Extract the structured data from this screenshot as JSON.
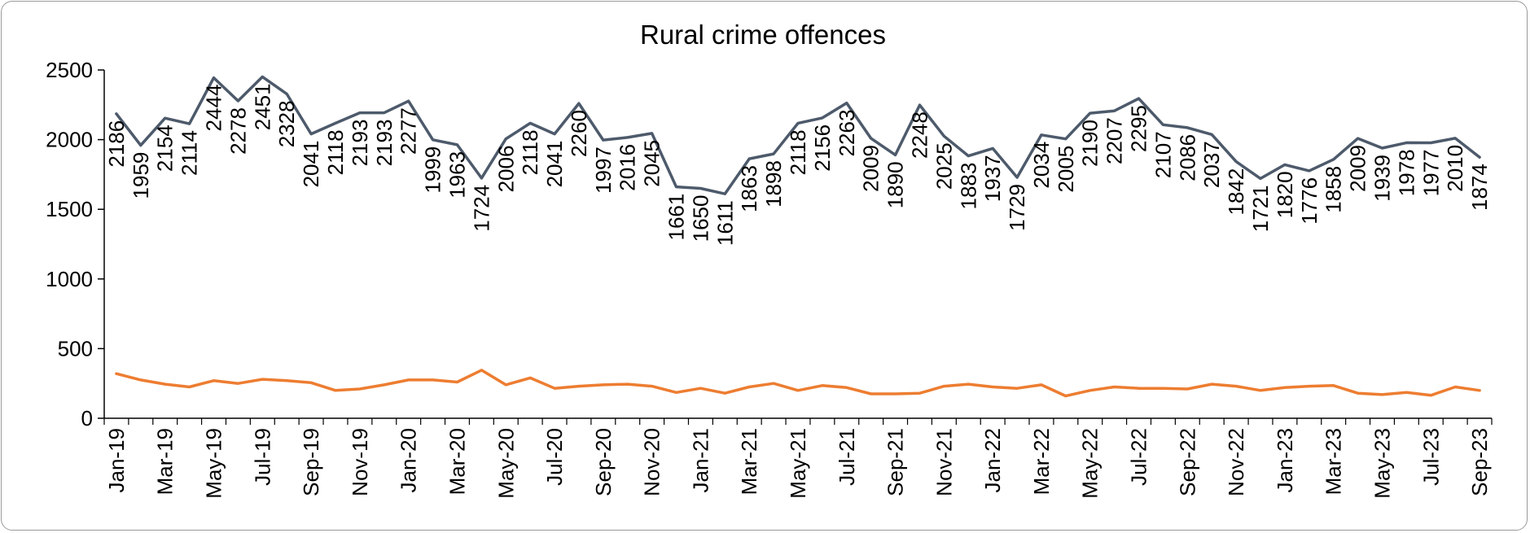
{
  "chart_data": {
    "type": "line",
    "title": "Rural crime offences",
    "xlabel": "",
    "ylabel": "",
    "ylim": [
      0,
      2500
    ],
    "yticks": [
      0,
      500,
      1000,
      1500,
      2000,
      2500
    ],
    "grid": false,
    "legend": "none",
    "x": [
      "Jan-19",
      "Feb-19",
      "Mar-19",
      "Apr-19",
      "May-19",
      "Jun-19",
      "Jul-19",
      "Aug-19",
      "Sep-19",
      "Oct-19",
      "Nov-19",
      "Dec-19",
      "Jan-20",
      "Feb-20",
      "Mar-20",
      "Apr-20",
      "May-20",
      "Jun-20",
      "Jul-20",
      "Aug-20",
      "Sep-20",
      "Oct-20",
      "Nov-20",
      "Dec-20",
      "Jan-21",
      "Feb-21",
      "Mar-21",
      "Apr-21",
      "May-21",
      "Jun-21",
      "Jul-21",
      "Aug-21",
      "Sep-21",
      "Oct-21",
      "Nov-21",
      "Dec-21",
      "Jan-22",
      "Feb-22",
      "Mar-22",
      "Apr-22",
      "May-22",
      "Jun-22",
      "Jul-22",
      "Aug-22",
      "Sep-22",
      "Oct-22",
      "Nov-22",
      "Dec-22",
      "Jan-23",
      "Feb-23",
      "Mar-23",
      "Apr-23",
      "May-23",
      "Jun-23",
      "Jul-23",
      "Aug-23",
      "Sep-23"
    ],
    "x_tick_labels": [
      "Jan-19",
      "Mar-19",
      "May-19",
      "Jul-19",
      "Sep-19",
      "Nov-19",
      "Jan-20",
      "Mar-20",
      "May-20",
      "Jul-20",
      "Sep-20",
      "Nov-20",
      "Jan-21",
      "Mar-21",
      "May-21",
      "Jul-21",
      "Sep-21",
      "Nov-21",
      "Jan-22",
      "Mar-22",
      "May-22",
      "Jul-22",
      "Sep-22",
      "Nov-22",
      "Jan-23",
      "Mar-23",
      "May-23",
      "Jul-23",
      "Sep-23"
    ],
    "series": [
      {
        "color": "#4d5a6b",
        "data_labels_shown": true,
        "values": [
          2186,
          1959,
          2154,
          2114,
          2444,
          2278,
          2451,
          2328,
          2041,
          2118,
          2193,
          2193,
          2277,
          1999,
          1963,
          1724,
          2006,
          2118,
          2041,
          2260,
          1997,
          2016,
          2045,
          1661,
          1650,
          1611,
          1863,
          1898,
          2118,
          2156,
          2263,
          2009,
          1890,
          2248,
          2025,
          1883,
          1937,
          1729,
          2034,
          2005,
          2190,
          2207,
          2295,
          2107,
          2086,
          2037,
          1842,
          1721,
          1820,
          1776,
          1858,
          2009,
          1939,
          1978,
          1977,
          2010,
          1874
        ]
      },
      {
        "color": "#ed7d31",
        "data_labels_shown": false,
        "values": [
          320,
          275,
          245,
          225,
          270,
          250,
          280,
          270,
          255,
          200,
          210,
          240,
          275,
          275,
          260,
          345,
          240,
          290,
          215,
          230,
          240,
          245,
          230,
          185,
          215,
          180,
          225,
          250,
          200,
          235,
          220,
          175,
          175,
          180,
          230,
          245,
          225,
          215,
          240,
          160,
          200,
          225,
          215,
          215,
          210,
          245,
          230,
          200,
          220,
          230,
          235,
          180,
          170,
          185,
          165,
          225,
          200
        ]
      }
    ]
  }
}
